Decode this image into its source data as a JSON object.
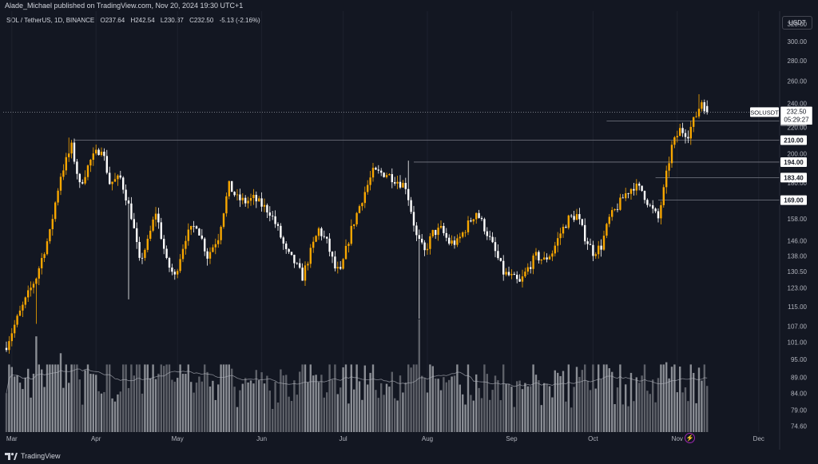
{
  "header": {
    "publish_line": "Alade_Michael published on TradingView.com, Nov 20, 2024 19:30 UTC+1",
    "symbol_desc": "SOL / TetherUS, 1D, BINANCE",
    "ohlc": [
      {
        "k": "O",
        "v": "237.64"
      },
      {
        "k": "H",
        "v": "242.54"
      },
      {
        "k": "L",
        "v": "230.37"
      },
      {
        "k": "C",
        "v": "232.50"
      }
    ],
    "change": "-5.13 (-2.16%)",
    "currency_button": "USDT"
  },
  "footer": {
    "brand": "TradingView"
  },
  "icons": {
    "flash": "flash-icon",
    "logo": "tradingview-logo-icon"
  },
  "colors": {
    "background": "#131722",
    "bull": "#f7a600",
    "bear": "#ffffff",
    "volume": "#6b6e76",
    "volume_ma": "#b2b5be",
    "level_line": "#787b86",
    "grid": "#1e222d"
  },
  "chart_data": {
    "type": "candlestick",
    "symbol": "SOLUSDT",
    "timeframe": "1D",
    "last_price": "232.50",
    "countdown": "05:29:27",
    "y_scale": "log",
    "ylim": [
      73,
      335
    ],
    "price_ticks": [
      "320.00",
      "300.00",
      "280.00",
      "260.00",
      "240.00",
      "220.00",
      "200.00",
      "180.00",
      "169.00",
      "158.00",
      "146.00",
      "138.00",
      "130.50",
      "123.00",
      "115.00",
      "107.00",
      "101.00",
      "95.00",
      "89.00",
      "84.00",
      "79.00",
      "74.60"
    ],
    "x_ticks": [
      "Mar",
      "Apr",
      "May",
      "Jun",
      "Jul",
      "Aug",
      "Sep",
      "Oct",
      "Nov",
      "Dec"
    ],
    "x_tick_days": [
      2,
      33,
      63,
      94,
      124,
      155,
      186,
      216,
      247,
      277
    ],
    "levels": [
      {
        "label": "225.20",
        "value": 225.2,
        "start_day": 221
      },
      {
        "label": "210.00",
        "value": 210.0,
        "start_day": 25
      },
      {
        "label": "194.00",
        "value": 194.0,
        "start_day": 150
      },
      {
        "label": "183.40",
        "value": 183.4,
        "start_day": 239
      },
      {
        "label": "169.00",
        "value": 169.0,
        "start_day": 240
      }
    ],
    "anchors": [
      [
        0,
        100
      ],
      [
        6,
        115
      ],
      [
        11,
        128
      ],
      [
        16,
        150
      ],
      [
        20,
        185
      ],
      [
        24,
        205
      ],
      [
        27,
        178
      ],
      [
        31,
        195
      ],
      [
        35,
        205
      ],
      [
        38,
        180
      ],
      [
        42,
        183
      ],
      [
        46,
        160
      ],
      [
        49,
        135
      ],
      [
        52,
        145
      ],
      [
        55,
        162
      ],
      [
        59,
        135
      ],
      [
        62,
        128
      ],
      [
        66,
        148
      ],
      [
        70,
        155
      ],
      [
        74,
        138
      ],
      [
        78,
        148
      ],
      [
        82,
        178
      ],
      [
        85,
        170
      ],
      [
        88,
        168
      ],
      [
        91,
        170
      ],
      [
        94,
        166
      ],
      [
        97,
        162
      ],
      [
        100,
        152
      ],
      [
        103,
        140
      ],
      [
        106,
        135
      ],
      [
        109,
        128
      ],
      [
        112,
        140
      ],
      [
        115,
        152
      ],
      [
        118,
        145
      ],
      [
        121,
        132
      ],
      [
        123,
        130
      ],
      [
        127,
        152
      ],
      [
        131,
        170
      ],
      [
        135,
        187
      ],
      [
        140,
        186
      ],
      [
        145,
        180
      ],
      [
        147,
        178
      ],
      [
        151,
        148
      ],
      [
        154,
        140
      ],
      [
        157,
        150
      ],
      [
        160,
        152
      ],
      [
        163,
        145
      ],
      [
        166,
        145
      ],
      [
        170,
        155
      ],
      [
        173,
        162
      ],
      [
        177,
        150
      ],
      [
        180,
        140
      ],
      [
        183,
        130
      ],
      [
        186,
        128
      ],
      [
        189,
        125
      ],
      [
        192,
        132
      ],
      [
        195,
        138
      ],
      [
        198,
        136
      ],
      [
        201,
        140
      ],
      [
        204,
        150
      ],
      [
        207,
        158
      ],
      [
        210,
        160
      ],
      [
        213,
        148
      ],
      [
        216,
        140
      ],
      [
        219,
        143
      ],
      [
        222,
        158
      ],
      [
        225,
        165
      ],
      [
        228,
        173
      ],
      [
        231,
        178
      ],
      [
        234,
        175
      ],
      [
        237,
        165
      ],
      [
        240,
        158
      ],
      [
        242,
        175
      ],
      [
        245,
        205
      ],
      [
        248,
        218
      ],
      [
        251,
        215
      ],
      [
        254,
        230
      ],
      [
        256,
        242
      ],
      [
        258,
        232.5
      ]
    ],
    "volume": {
      "ma_period": 20,
      "max": 100,
      "note": "relative volume"
    }
  }
}
